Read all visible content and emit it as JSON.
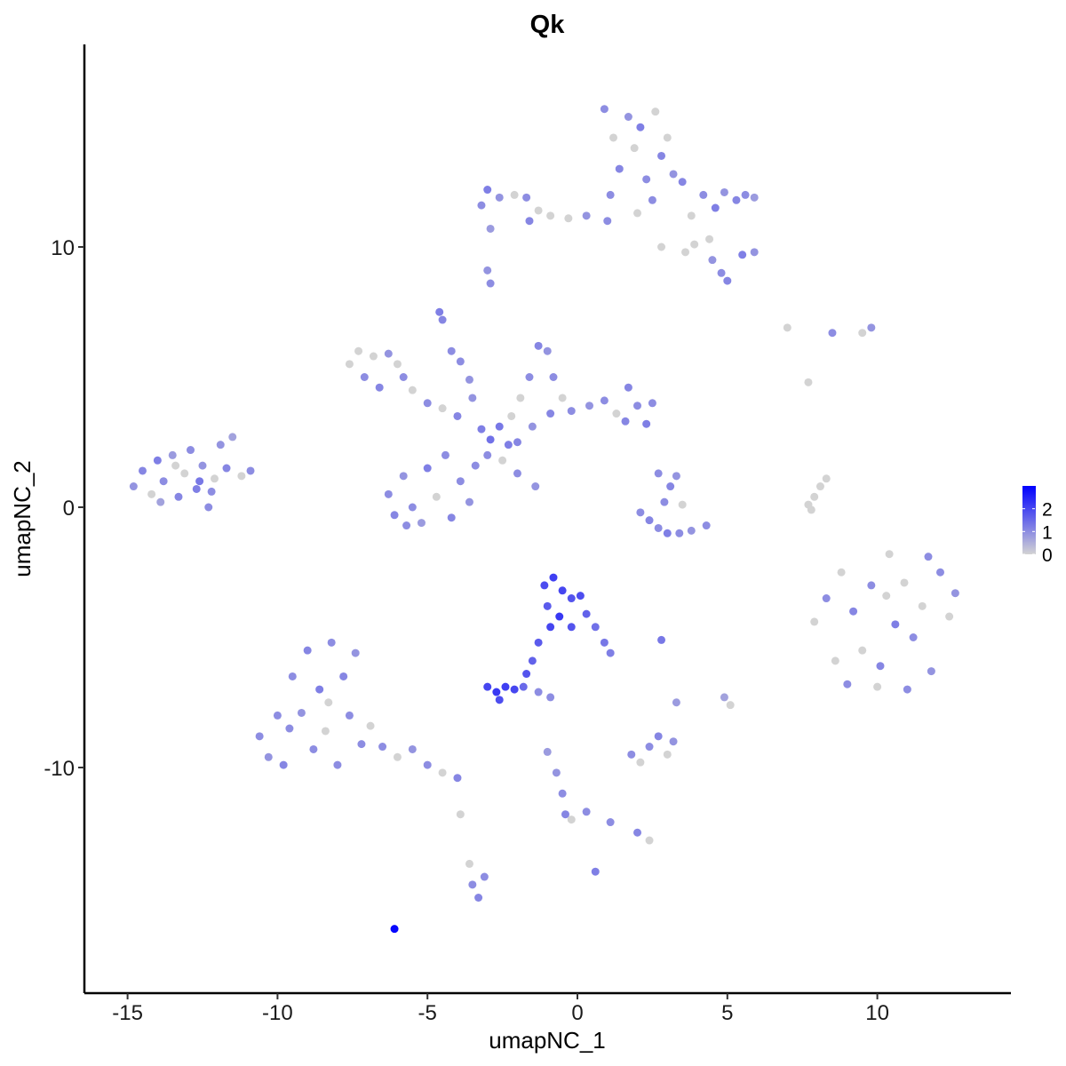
{
  "chart_data": {
    "type": "scatter",
    "title": "Qk",
    "xlabel": "umapNC_1",
    "ylabel": "umapNC_2",
    "xlim": [
      -16.4,
      14.5
    ],
    "ylim": [
      -18.7,
      17.8
    ],
    "xticks": [
      -15,
      -10,
      -5,
      0,
      5,
      10
    ],
    "yticks": [
      -10,
      0,
      10
    ],
    "xtick_labels": [
      "-15",
      "-10",
      "-5",
      "0",
      "5",
      "10"
    ],
    "ytick_labels": [
      "-10",
      "0",
      "10"
    ],
    "grid": false,
    "legend": {
      "placement": "right",
      "type": "colorbar",
      "ticks": [
        0,
        1,
        2
      ],
      "tick_labels": [
        "0",
        "1",
        "2"
      ],
      "range": [
        0,
        3.0
      ],
      "low_color": "#D3D3D3",
      "high_color": "#0000FF"
    },
    "point_fields": [
      "umapNC_1",
      "umapNC_2",
      "expression"
    ],
    "points": [
      [
        -14.8,
        0.8,
        0.9
      ],
      [
        -14.5,
        1.4,
        1.1
      ],
      [
        -14.2,
        0.5,
        0
      ],
      [
        -14.0,
        1.8,
        1.2
      ],
      [
        -13.8,
        1.0,
        1.0
      ],
      [
        -13.5,
        2.0,
        0.8
      ],
      [
        -13.3,
        0.4,
        1.1
      ],
      [
        -13.1,
        1.3,
        0
      ],
      [
        -12.9,
        2.2,
        1.0
      ],
      [
        -12.7,
        0.7,
        1.2
      ],
      [
        -12.5,
        1.6,
        0.9
      ],
      [
        -12.3,
        0.0,
        1.0
      ],
      [
        -12.1,
        1.1,
        0
      ],
      [
        -11.9,
        2.4,
        0.9
      ],
      [
        -11.7,
        1.5,
        1.1
      ],
      [
        -11.5,
        2.7,
        0.7
      ],
      [
        -11.2,
        1.2,
        0
      ],
      [
        -10.9,
        1.4,
        1.0
      ],
      [
        -13.9,
        0.2,
        0.7
      ],
      [
        -12.6,
        1.0,
        1.3
      ],
      [
        -13.4,
        1.6,
        0
      ],
      [
        -12.2,
        0.6,
        1.0
      ],
      [
        0.9,
        15.3,
        1.0
      ],
      [
        1.2,
        14.2,
        0
      ],
      [
        1.4,
        13.0,
        1.1
      ],
      [
        1.7,
        15.0,
        0.9
      ],
      [
        1.9,
        13.8,
        0
      ],
      [
        2.1,
        14.6,
        1.2
      ],
      [
        2.3,
        12.6,
        1.0
      ],
      [
        2.6,
        15.2,
        0
      ],
      [
        2.8,
        13.5,
        1.1
      ],
      [
        3.0,
        14.2,
        0
      ],
      [
        3.2,
        12.8,
        0.9
      ],
      [
        1.1,
        12.0,
        1.0
      ],
      [
        2.0,
        11.3,
        0
      ],
      [
        2.5,
        11.8,
        1.0
      ],
      [
        3.5,
        12.5,
        1.1
      ],
      [
        3.8,
        11.2,
        0
      ],
      [
        4.2,
        12.0,
        1.0
      ],
      [
        4.6,
        11.5,
        1.2
      ],
      [
        4.9,
        12.1,
        0.9
      ],
      [
        5.3,
        11.8,
        1.1
      ],
      [
        5.6,
        12.0,
        1.0
      ],
      [
        5.9,
        11.9,
        0.8
      ],
      [
        4.4,
        10.3,
        0
      ],
      [
        4.8,
        9.0,
        1.0
      ],
      [
        5.0,
        8.7,
        1.1
      ],
      [
        5.5,
        9.7,
        1.2
      ],
      [
        5.9,
        9.8,
        0.9
      ],
      [
        3.9,
        10.1,
        0
      ],
      [
        3.6,
        9.8,
        0
      ],
      [
        2.8,
        10.0,
        0
      ],
      [
        4.5,
        9.5,
        0.9
      ],
      [
        -3.2,
        11.6,
        1.0
      ],
      [
        -3.0,
        12.2,
        1.2
      ],
      [
        -2.6,
        11.9,
        0.9
      ],
      [
        -2.9,
        10.7,
        0.8
      ],
      [
        -2.1,
        12.0,
        0
      ],
      [
        -1.7,
        11.9,
        1.0
      ],
      [
        -1.3,
        11.4,
        0
      ],
      [
        -0.9,
        11.2,
        0
      ],
      [
        -0.3,
        11.1,
        0
      ],
      [
        0.3,
        11.2,
        0.9
      ],
      [
        1.0,
        11.0,
        1.0
      ],
      [
        -1.6,
        11.0,
        1.1
      ],
      [
        -2.9,
        8.6,
        1.0
      ],
      [
        -3.0,
        9.1,
        0.9
      ],
      [
        -7.6,
        5.5,
        0
      ],
      [
        -7.3,
        6.0,
        0
      ],
      [
        -7.1,
        5.0,
        1.0
      ],
      [
        -6.8,
        5.8,
        0
      ],
      [
        -6.6,
        4.6,
        1.1
      ],
      [
        -6.3,
        5.9,
        0.9
      ],
      [
        -6.0,
        5.5,
        0
      ],
      [
        -5.8,
        5.0,
        1.0
      ],
      [
        -5.5,
        4.5,
        0
      ],
      [
        -5.0,
        4.0,
        1.0
      ],
      [
        -4.5,
        3.8,
        0
      ],
      [
        -4.0,
        3.5,
        1.1
      ],
      [
        -3.5,
        4.2,
        0.9
      ],
      [
        -4.6,
        7.5,
        1.2
      ],
      [
        -4.5,
        7.2,
        1.1
      ],
      [
        -4.2,
        6.0,
        1.0
      ],
      [
        -3.9,
        5.6,
        1.0
      ],
      [
        -3.6,
        4.9,
        0.9
      ],
      [
        -3.2,
        3.0,
        1.2
      ],
      [
        -2.9,
        2.6,
        1.4
      ],
      [
        -2.6,
        3.1,
        1.3
      ],
      [
        -2.3,
        2.4,
        1.2
      ],
      [
        -3.0,
        2.0,
        1.0
      ],
      [
        -2.5,
        1.8,
        0
      ],
      [
        -2.0,
        2.5,
        1.1
      ],
      [
        -6.3,
        0.5,
        1.0
      ],
      [
        -6.1,
        -0.3,
        1.1
      ],
      [
        -5.8,
        1.2,
        0.9
      ],
      [
        -5.5,
        0.0,
        1.0
      ],
      [
        -5.2,
        -0.6,
        0.8
      ],
      [
        -5.0,
        1.5,
        1.2
      ],
      [
        -4.7,
        0.4,
        0
      ],
      [
        -4.4,
        2.0,
        1.0
      ],
      [
        -4.2,
        -0.4,
        1.1
      ],
      [
        -3.9,
        1.0,
        1.0
      ],
      [
        -3.6,
        0.2,
        0.9
      ],
      [
        -3.4,
        1.6,
        1.0
      ],
      [
        -5.7,
        -0.7,
        1.0
      ],
      [
        -1.6,
        5.0,
        1.0
      ],
      [
        -1.3,
        6.2,
        1.1
      ],
      [
        -1.0,
        6.0,
        0.9
      ],
      [
        -0.8,
        5.0,
        1.0
      ],
      [
        -0.5,
        4.2,
        0
      ],
      [
        -0.9,
        3.6,
        1.1
      ],
      [
        -1.5,
        3.1,
        0.9
      ],
      [
        -0.2,
        3.7,
        1.0
      ],
      [
        0.4,
        3.9,
        0.9
      ],
      [
        0.9,
        4.1,
        1.0
      ],
      [
        1.3,
        3.6,
        0
      ],
      [
        1.7,
        4.6,
        1.1
      ],
      [
        2.0,
        3.9,
        1.0
      ],
      [
        2.3,
        3.2,
        1.2
      ],
      [
        2.5,
        4.0,
        1.0
      ],
      [
        1.6,
        3.3,
        1.1
      ],
      [
        -2.2,
        3.5,
        0
      ],
      [
        -1.9,
        4.2,
        0
      ],
      [
        -2.0,
        1.3,
        1.0
      ],
      [
        -1.4,
        0.8,
        0.9
      ],
      [
        2.1,
        -0.2,
        1.0
      ],
      [
        2.4,
        -0.5,
        1.1
      ],
      [
        2.7,
        -0.8,
        1.0
      ],
      [
        3.0,
        -1.0,
        1.2
      ],
      [
        3.4,
        -1.0,
        1.0
      ],
      [
        3.8,
        -0.9,
        0.9
      ],
      [
        4.3,
        -0.7,
        1.0
      ],
      [
        2.9,
        0.2,
        1.0
      ],
      [
        3.1,
        0.8,
        1.1
      ],
      [
        3.3,
        1.2,
        0.9
      ],
      [
        2.7,
        1.3,
        1.0
      ],
      [
        3.5,
        0.1,
        0
      ],
      [
        7.8,
        -0.1,
        0
      ],
      [
        7.9,
        0.4,
        0
      ],
      [
        8.1,
        0.8,
        0
      ],
      [
        8.3,
        1.1,
        0
      ],
      [
        7.7,
        0.1,
        0
      ],
      [
        7.0,
        6.9,
        0
      ],
      [
        8.5,
        6.7,
        1.0
      ],
      [
        9.5,
        6.7,
        0
      ],
      [
        9.8,
        6.9,
        0.9
      ],
      [
        7.7,
        4.8,
        0
      ],
      [
        7.9,
        -4.4,
        0
      ],
      [
        8.3,
        -3.5,
        1.0
      ],
      [
        8.8,
        -2.5,
        0
      ],
      [
        9.2,
        -4.0,
        1.1
      ],
      [
        9.5,
        -5.5,
        0
      ],
      [
        9.8,
        -3.0,
        1.0
      ],
      [
        10.1,
        -6.1,
        1.1
      ],
      [
        10.4,
        -1.8,
        0
      ],
      [
        10.6,
        -4.5,
        1.2
      ],
      [
        10.9,
        -2.9,
        0
      ],
      [
        11.2,
        -5.0,
        1.0
      ],
      [
        11.5,
        -3.8,
        0
      ],
      [
        11.8,
        -6.3,
        0.9
      ],
      [
        12.1,
        -2.5,
        1.0
      ],
      [
        12.4,
        -4.2,
        0
      ],
      [
        12.6,
        -3.3,
        0.9
      ],
      [
        9.0,
        -6.8,
        1.0
      ],
      [
        10.0,
        -6.9,
        0
      ],
      [
        11.0,
        -7.0,
        1.0
      ],
      [
        8.6,
        -5.9,
        0
      ],
      [
        10.3,
        -3.4,
        0
      ],
      [
        11.7,
        -1.9,
        1.0
      ],
      [
        -10.6,
        -8.8,
        1.0
      ],
      [
        -10.3,
        -9.6,
        0.9
      ],
      [
        -10.0,
        -8.0,
        1.0
      ],
      [
        -9.8,
        -9.9,
        1.1
      ],
      [
        -9.5,
        -6.5,
        1.0
      ],
      [
        -9.2,
        -7.9,
        0.9
      ],
      [
        -9.0,
        -5.5,
        1.1
      ],
      [
        -8.8,
        -9.3,
        1.0
      ],
      [
        -8.6,
        -7.0,
        1.2
      ],
      [
        -8.4,
        -8.6,
        0
      ],
      [
        -8.2,
        -5.2,
        1.0
      ],
      [
        -8.0,
        -9.9,
        1.0
      ],
      [
        -7.8,
        -6.5,
        1.1
      ],
      [
        -7.6,
        -8.0,
        1.0
      ],
      [
        -7.4,
        -5.6,
        0.9
      ],
      [
        -7.2,
        -9.1,
        1.0
      ],
      [
        -6.9,
        -8.4,
        0
      ],
      [
        -6.5,
        -9.2,
        1.0
      ],
      [
        -6.0,
        -9.6,
        0
      ],
      [
        -5.5,
        -9.3,
        0.9
      ],
      [
        -5.0,
        -9.9,
        1.0
      ],
      [
        -4.5,
        -10.2,
        0
      ],
      [
        -4.0,
        -10.4,
        1.1
      ],
      [
        -9.6,
        -8.5,
        1.0
      ],
      [
        -8.3,
        -7.5,
        0
      ],
      [
        -1.1,
        -3.0,
        1.9
      ],
      [
        -0.8,
        -2.7,
        2.1
      ],
      [
        -0.5,
        -3.2,
        2.0
      ],
      [
        -0.2,
        -3.5,
        1.8
      ],
      [
        0.1,
        -3.4,
        1.9
      ],
      [
        -1.0,
        -3.8,
        1.7
      ],
      [
        -0.6,
        -4.2,
        2.2
      ],
      [
        -0.2,
        -4.6,
        1.8
      ],
      [
        0.3,
        -4.1,
        1.6
      ],
      [
        -0.9,
        -4.6,
        2.0
      ],
      [
        0.6,
        -4.6,
        1.4
      ],
      [
        0.9,
        -5.2,
        1.3
      ],
      [
        1.1,
        -5.6,
        1.2
      ],
      [
        -1.3,
        -5.2,
        1.7
      ],
      [
        -1.5,
        -5.9,
        1.6
      ],
      [
        -1.7,
        -6.4,
        1.8
      ],
      [
        -3.0,
        -6.9,
        2.0
      ],
      [
        -2.7,
        -7.1,
        2.2
      ],
      [
        -2.4,
        -6.9,
        2.1
      ],
      [
        -2.1,
        -7.0,
        2.0
      ],
      [
        -2.6,
        -7.4,
        1.9
      ],
      [
        -1.8,
        -6.9,
        1.5
      ],
      [
        -1.3,
        -7.1,
        1.0
      ],
      [
        -0.9,
        -7.3,
        1.0
      ],
      [
        -1.0,
        -9.4,
        0.8
      ],
      [
        -0.7,
        -10.2,
        0.9
      ],
      [
        -0.5,
        -11.0,
        1.0
      ],
      [
        -0.4,
        -11.8,
        1.1
      ],
      [
        -0.2,
        -12.0,
        0
      ],
      [
        0.3,
        -11.7,
        1.0
      ],
      [
        1.1,
        -12.1,
        1.0
      ],
      [
        2.0,
        -12.5,
        1.1
      ],
      [
        2.4,
        -12.8,
        0
      ],
      [
        0.6,
        -14.0,
        1.2
      ],
      [
        2.8,
        -5.1,
        1.3
      ],
      [
        3.3,
        -7.5,
        0.8
      ],
      [
        4.9,
        -7.3,
        0.7
      ],
      [
        5.1,
        -7.6,
        0
      ],
      [
        1.8,
        -9.5,
        1.0
      ],
      [
        2.1,
        -9.8,
        0
      ],
      [
        2.4,
        -9.2,
        1.0
      ],
      [
        2.7,
        -8.8,
        1.1
      ],
      [
        3.0,
        -9.5,
        0
      ],
      [
        3.2,
        -9.0,
        0.9
      ],
      [
        -3.9,
        -11.8,
        0
      ],
      [
        -3.6,
        -13.7,
        0
      ],
      [
        -3.5,
        -14.5,
        1.0
      ],
      [
        -3.3,
        -15.0,
        1.1
      ],
      [
        -3.1,
        -14.2,
        1.0
      ],
      [
        -6.1,
        -16.2,
        2.9
      ]
    ]
  }
}
